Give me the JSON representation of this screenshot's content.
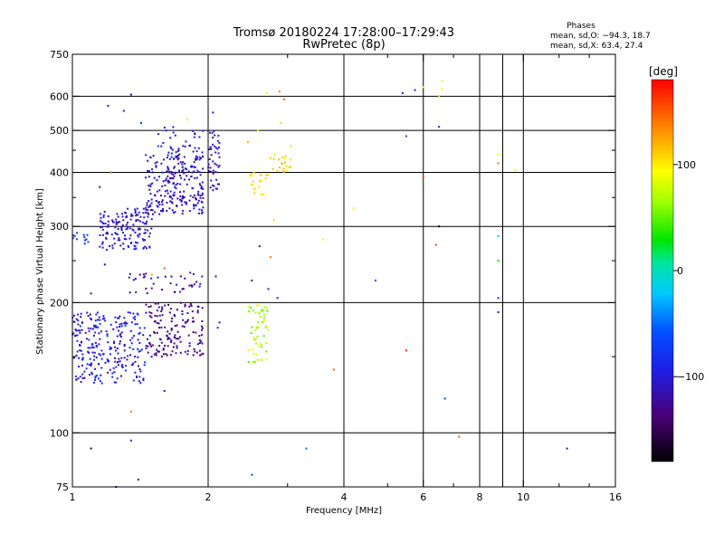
{
  "chart_data": {
    "type": "scatter",
    "title": "Tromsø 20180224 17:28:00–17:29:43",
    "subtitle": "RwPretec (8p)",
    "xlabel": "Frequency [MHz]",
    "ylabel": "Stationary phase Virtual Height [km]",
    "x_scale": "log",
    "y_scale": "log",
    "xlim": [
      1,
      16
    ],
    "ylim": [
      75,
      750
    ],
    "x_ticks": [
      {
        "value": 1,
        "label": "1"
      },
      {
        "value": 2,
        "label": "2"
      },
      {
        "value": 4,
        "label": "4"
      },
      {
        "value": 6,
        "label": "6"
      },
      {
        "value": 8,
        "label": "8"
      },
      {
        "value": 10,
        "label": "10"
      },
      {
        "value": 16,
        "label": "16"
      }
    ],
    "y_ticks": [
      {
        "value": 75,
        "label": "75"
      },
      {
        "value": 100,
        "label": "100"
      },
      {
        "value": 200,
        "label": "200"
      },
      {
        "value": 300,
        "label": "300"
      },
      {
        "value": 400,
        "label": "400"
      },
      {
        "value": 500,
        "label": "500"
      },
      {
        "value": 600,
        "label": "600"
      },
      {
        "value": 750,
        "label": "750"
      }
    ],
    "x_gridlines": [
      2,
      4,
      6,
      8,
      9,
      10
    ],
    "y_gridlines": [
      100,
      200,
      300,
      400,
      500,
      600
    ],
    "x_minor_ticks": [
      3,
      5,
      7,
      9,
      12,
      14
    ],
    "y_minor_ticks": [
      150,
      250,
      350,
      450
    ],
    "grid": true,
    "phase_stats": {
      "heading": "Phases",
      "line1": "mean, sd,O: −94.3, 18.7",
      "line2": "mean, sd,X:  63.4, 27.4"
    },
    "colorbar": {
      "title": "[deg]",
      "range": [
        -180,
        180
      ],
      "ticks": [
        {
          "value": 100,
          "label": "100"
        },
        {
          "value": 0,
          "label": "0"
        },
        {
          "value": -100,
          "label": "−100"
        }
      ]
    },
    "clusters": [
      {
        "fmin": 1.0,
        "fmax": 1.45,
        "hmin": 130,
        "hmax": 190,
        "pmin": -125,
        "pmax": -75,
        "n": 260
      },
      {
        "fmin": 1.45,
        "fmax": 1.95,
        "hmin": 150,
        "hmax": 200,
        "pmin": -150,
        "pmax": -110,
        "n": 150
      },
      {
        "fmin": 1.3,
        "fmax": 2.05,
        "hmin": 210,
        "hmax": 235,
        "pmin": -140,
        "pmax": -95,
        "n": 40
      },
      {
        "fmin": 1.15,
        "fmax": 1.5,
        "hmin": 265,
        "hmax": 330,
        "pmin": -120,
        "pmax": -90,
        "n": 150
      },
      {
        "fmin": 1.45,
        "fmax": 1.95,
        "hmin": 320,
        "hmax": 440,
        "pmin": -125,
        "pmax": -95,
        "n": 240
      },
      {
        "fmin": 1.55,
        "fmax": 1.95,
        "hmin": 430,
        "hmax": 510,
        "pmin": -115,
        "pmax": -85,
        "n": 40
      },
      {
        "fmin": 2.0,
        "fmax": 2.12,
        "hmin": 360,
        "hmax": 500,
        "pmin": -130,
        "pmax": -100,
        "n": 45
      },
      {
        "fmin": 2.45,
        "fmax": 2.72,
        "hmin": 145,
        "hmax": 200,
        "pmin": 40,
        "pmax": 95,
        "n": 55
      },
      {
        "fmin": 2.48,
        "fmax": 2.72,
        "hmin": 355,
        "hmax": 400,
        "pmin": 90,
        "pmax": 125,
        "n": 22
      },
      {
        "fmin": 2.75,
        "fmax": 3.05,
        "hmin": 400,
        "hmax": 440,
        "pmin": 100,
        "pmax": 120,
        "n": 22
      },
      {
        "fmin": 1.0,
        "fmax": 1.1,
        "hmin": 270,
        "hmax": 290,
        "pmin": -95,
        "pmax": -60,
        "n": 12
      }
    ],
    "points": [
      {
        "f": 1.35,
        "h": 605,
        "p": -140
      },
      {
        "f": 1.2,
        "h": 570,
        "p": -120
      },
      {
        "f": 1.3,
        "h": 555,
        "p": -110
      },
      {
        "f": 1.42,
        "h": 520,
        "p": -80
      },
      {
        "f": 1.8,
        "h": 530,
        "p": 80
      },
      {
        "f": 1.55,
        "h": 460,
        "p": -70
      },
      {
        "f": 1.22,
        "h": 400,
        "p": 150
      },
      {
        "f": 1.15,
        "h": 370,
        "p": -120
      },
      {
        "f": 2.05,
        "h": 550,
        "p": -110
      },
      {
        "f": 2.7,
        "h": 610,
        "p": 100
      },
      {
        "f": 2.88,
        "h": 615,
        "p": 140
      },
      {
        "f": 2.95,
        "h": 590,
        "p": 150
      },
      {
        "f": 2.9,
        "h": 520,
        "p": 70
      },
      {
        "f": 2.58,
        "h": 500,
        "p": 100
      },
      {
        "f": 2.45,
        "h": 470,
        "p": 120
      },
      {
        "f": 2.8,
        "h": 310,
        "p": 110
      },
      {
        "f": 3.05,
        "h": 460,
        "p": 80
      },
      {
        "f": 2.6,
        "h": 270,
        "p": -110
      },
      {
        "f": 2.75,
        "h": 255,
        "p": 140
      },
      {
        "f": 2.85,
        "h": 205,
        "p": -100
      },
      {
        "f": 2.5,
        "h": 225,
        "p": -110
      },
      {
        "f": 2.72,
        "h": 215,
        "p": -100
      },
      {
        "f": 2.08,
        "h": 230,
        "p": -140
      },
      {
        "f": 1.6,
        "h": 240,
        "p": 150
      },
      {
        "f": 1.5,
        "h": 232,
        "p": 130
      },
      {
        "f": 1.1,
        "h": 210,
        "p": -120
      },
      {
        "f": 1.18,
        "h": 245,
        "p": -130
      },
      {
        "f": 2.12,
        "h": 180,
        "p": -120
      },
      {
        "f": 2.1,
        "h": 175,
        "p": -90
      },
      {
        "f": 3.6,
        "h": 280,
        "p": 100
      },
      {
        "f": 4.2,
        "h": 330,
        "p": 100
      },
      {
        "f": 4.7,
        "h": 225,
        "p": -60
      },
      {
        "f": 3.8,
        "h": 140,
        "p": 150
      },
      {
        "f": 5.4,
        "h": 610,
        "p": -100
      },
      {
        "f": 5.75,
        "h": 620,
        "p": -100
      },
      {
        "f": 6.0,
        "h": 630,
        "p": 100
      },
      {
        "f": 6.6,
        "h": 650,
        "p": 100
      },
      {
        "f": 6.6,
        "h": 625,
        "p": 100
      },
      {
        "f": 6.5,
        "h": 600,
        "p": 60
      },
      {
        "f": 6.5,
        "h": 510,
        "p": -80
      },
      {
        "f": 5.5,
        "h": 485,
        "p": -60
      },
      {
        "f": 6.0,
        "h": 390,
        "p": 160
      },
      {
        "f": 6.5,
        "h": 300,
        "p": -180
      },
      {
        "f": 6.4,
        "h": 272,
        "p": 160
      },
      {
        "f": 5.5,
        "h": 155,
        "p": 170
      },
      {
        "f": 6.7,
        "h": 120,
        "p": -70
      },
      {
        "f": 7.2,
        "h": 98,
        "p": 150
      },
      {
        "f": 8.8,
        "h": 440,
        "p": 100
      },
      {
        "f": 8.8,
        "h": 420,
        "p": 140
      },
      {
        "f": 9.6,
        "h": 405,
        "p": 100
      },
      {
        "f": 8.8,
        "h": 285,
        "p": -20
      },
      {
        "f": 8.8,
        "h": 250,
        "p": 30
      },
      {
        "f": 8.8,
        "h": 205,
        "p": -80
      },
      {
        "f": 8.8,
        "h": 190,
        "p": -100
      },
      {
        "f": 12.5,
        "h": 92,
        "p": -120
      },
      {
        "f": 3.3,
        "h": 92,
        "p": -50
      },
      {
        "f": 2.5,
        "h": 80,
        "p": -70
      },
      {
        "f": 1.35,
        "h": 96,
        "p": -100
      },
      {
        "f": 1.1,
        "h": 92,
        "p": -160
      },
      {
        "f": 1.4,
        "h": 78,
        "p": -130
      },
      {
        "f": 1.25,
        "h": 75,
        "p": -120
      },
      {
        "f": 1.35,
        "h": 112,
        "p": 140
      },
      {
        "f": 1.6,
        "h": 125,
        "p": -90
      }
    ]
  }
}
